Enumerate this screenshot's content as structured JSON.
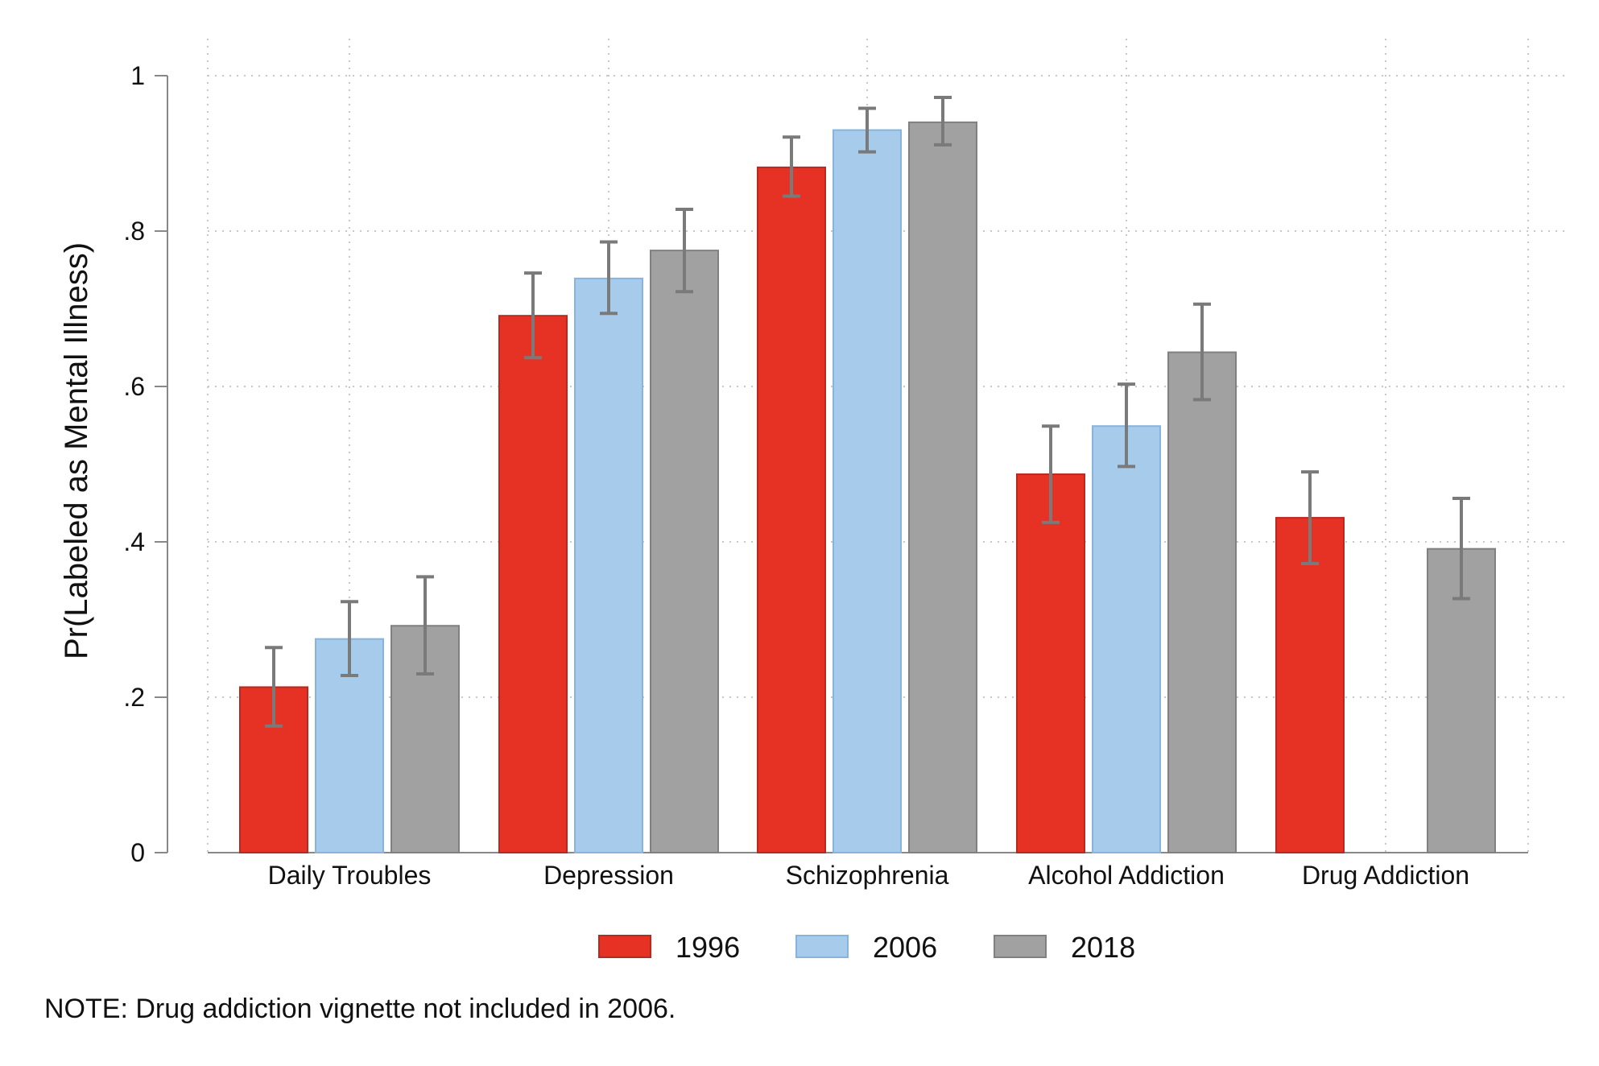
{
  "chart_data": {
    "type": "bar",
    "title": "",
    "xlabel": "",
    "ylabel": "Pr(Labeled as Mental Illness)",
    "ylim": [
      0,
      1
    ],
    "yticks": [
      0,
      0.2,
      0.4,
      0.6,
      0.8,
      1
    ],
    "ytick_labels": [
      "0",
      ".2",
      ".4",
      ".6",
      ".8",
      "1"
    ],
    "categories": [
      "Daily Troubles",
      "Depression",
      "Schizophrenia",
      "Alcohol Addiction",
      "Drug Addiction"
    ],
    "series": [
      {
        "name": "1996",
        "color": "#e63225",
        "values": [
          0.213,
          0.691,
          0.882,
          0.487,
          0.431
        ],
        "ci_low": [
          0.163,
          0.637,
          0.845,
          0.425,
          0.372
        ],
        "ci_high": [
          0.264,
          0.746,
          0.921,
          0.549,
          0.49
        ]
      },
      {
        "name": "2006",
        "color": "#a6cbeb",
        "values": [
          0.275,
          0.739,
          0.93,
          0.549,
          null
        ],
        "ci_low": [
          0.228,
          0.694,
          0.902,
          0.497,
          null
        ],
        "ci_high": [
          0.323,
          0.786,
          0.958,
          0.603,
          null
        ]
      },
      {
        "name": "2018",
        "color": "#a1a1a1",
        "values": [
          0.292,
          0.775,
          0.94,
          0.644,
          0.391
        ],
        "ci_low": [
          0.23,
          0.722,
          0.911,
          0.583,
          0.327
        ],
        "ci_high": [
          0.355,
          0.828,
          0.972,
          0.706,
          0.456
        ]
      }
    ],
    "grid": true,
    "legend_position": "bottom",
    "note": "NOTE: Drug addiction vignette not included in 2006."
  }
}
